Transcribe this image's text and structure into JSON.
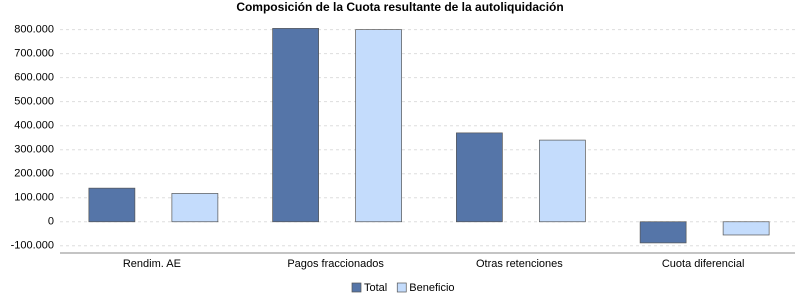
{
  "chart_data": {
    "type": "bar",
    "title": "Composición de la Cuota resultante de la autoliquidación",
    "categories": [
      "Rendim. AE",
      "Pagos fraccionados",
      "Otras retenciones",
      "Cuota diferencial"
    ],
    "series": [
      {
        "name": "Total",
        "color": "#5575a8",
        "values": [
          140000,
          805000,
          370000,
          -88000
        ]
      },
      {
        "name": "Beneficio",
        "color": "#c4dcfc",
        "values": [
          118000,
          800000,
          340000,
          -55000
        ]
      }
    ],
    "ylim": [
      -130000,
      840000
    ],
    "yticks": [
      {
        "value": -100000,
        "label": "-100.000"
      },
      0,
      {
        "value": 100000,
        "label": "100.000"
      },
      {
        "value": 200000,
        "label": "200.000"
      },
      {
        "value": 300000,
        "label": "300.000"
      },
      {
        "value": 400000,
        "label": "400.000"
      },
      {
        "value": 500000,
        "label": "500.000"
      },
      {
        "value": 600000,
        "label": "600.000"
      },
      {
        "value": 700000,
        "label": "700.000"
      },
      {
        "value": 800000,
        "label": "800.000"
      }
    ],
    "grid": true,
    "legend": "bottom"
  }
}
